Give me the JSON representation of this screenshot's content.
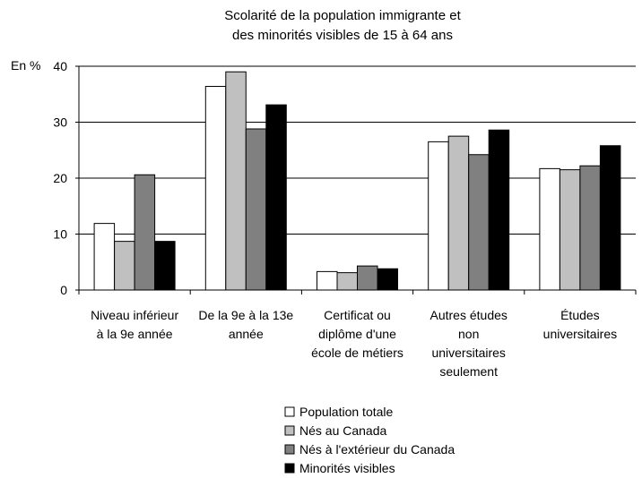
{
  "chart_data": {
    "type": "bar",
    "title_line1": "Scolarité de la population immigrante et",
    "title_line2": "des minorités visibles de 15 à 64 ans",
    "ylabel": "En %",
    "ylim": [
      0,
      40
    ],
    "yticks": [
      0,
      10,
      20,
      30,
      40
    ],
    "grid": true,
    "legend_position": "bottom-center",
    "categories": [
      [
        "Niveau inférieur",
        "à la 9e année"
      ],
      [
        "De la 9e à la 13e",
        "année"
      ],
      [
        "Certificat ou",
        "diplôme d'une",
        "école de métiers"
      ],
      [
        "Autres études",
        "non",
        "universitaires",
        "seulement"
      ],
      [
        "Études",
        "universitaires"
      ]
    ],
    "series": [
      {
        "name": "Population totale",
        "color": "#ffffff",
        "values": [
          11.9,
          36.4,
          3.3,
          26.5,
          21.7
        ]
      },
      {
        "name": "Nés au Canada",
        "color": "#c0c0c0",
        "values": [
          8.7,
          39.0,
          3.1,
          27.5,
          21.5
        ]
      },
      {
        "name": "Nés à l'extérieur du Canada",
        "color": "#808080",
        "values": [
          20.6,
          28.8,
          4.3,
          24.2,
          22.2
        ]
      },
      {
        "name": "Minorités visibles",
        "color": "#000000",
        "values": [
          8.7,
          33.1,
          3.8,
          28.6,
          25.8
        ]
      }
    ]
  }
}
